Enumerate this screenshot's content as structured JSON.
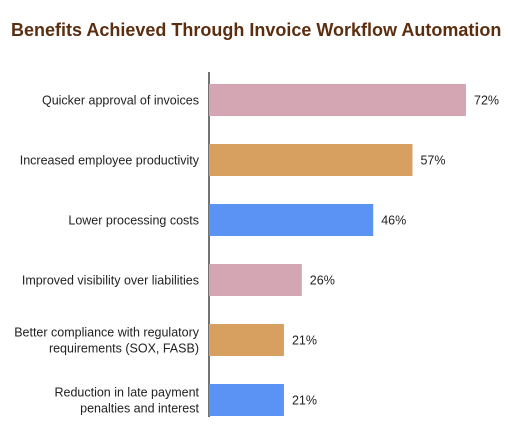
{
  "chart_data": {
    "type": "bar",
    "orientation": "horizontal",
    "title": "Benefits Achieved Through Invoice Workflow Automation",
    "categories": [
      [
        "Quicker approval of invoices"
      ],
      [
        "Increased employee productivity"
      ],
      [
        "Lower processing costs"
      ],
      [
        "Improved visibility over liabilities"
      ],
      [
        "Better compliance with regulatory",
        "requirements (SOX, FASB)"
      ],
      [
        "Reduction in late payment",
        "penalties and interest"
      ]
    ],
    "values": [
      72,
      57,
      46,
      26,
      21,
      21
    ],
    "value_labels": [
      "72%",
      "57%",
      "46%",
      "26%",
      "21%",
      "21%"
    ],
    "bar_colors": [
      "#d4a5b3",
      "#d8a060",
      "#5b93f5",
      "#d4a5b3",
      "#d8a060",
      "#5b93f5"
    ],
    "xlim": [
      0,
      100
    ],
    "grid": false,
    "legend": "none"
  },
  "colors": {
    "title": "#5c2e10",
    "axis": "#444444",
    "text": "#222222"
  }
}
